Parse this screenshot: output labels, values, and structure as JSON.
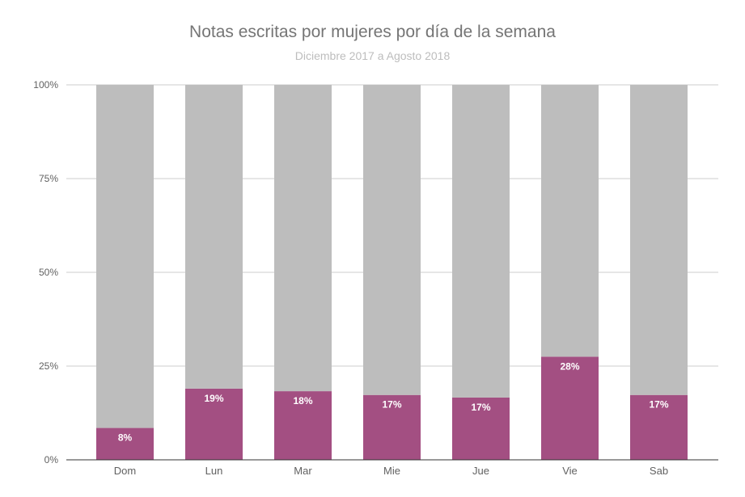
{
  "chart_data": {
    "type": "bar",
    "stacked": true,
    "title": "Notas escritas por mujeres por día de la semana",
    "subtitle": "Diciembre 2017 a Agosto 2018",
    "xlabel": "",
    "ylabel": "",
    "ylim": [
      0,
      100
    ],
    "yticks": [
      "0%",
      "25%",
      "50%",
      "75%",
      "100%"
    ],
    "ytick_values": [
      0,
      25,
      50,
      75,
      100
    ],
    "grid": true,
    "categories": [
      "Dom",
      "Lun",
      "Mar",
      "Mie",
      "Jue",
      "Vie",
      "Sab"
    ],
    "series": [
      {
        "values": [
          8.5,
          19,
          18.3,
          17.3,
          16.6,
          27.5,
          17.3
        ],
        "labels": [
          "8%",
          "19%",
          "18%",
          "17%",
          "17%",
          "28%",
          "17%"
        ],
        "color": "#a34f82"
      },
      {
        "values": [
          91.5,
          81,
          81.7,
          82.7,
          83.4,
          72.5,
          82.7
        ],
        "color": "#bdbdbd"
      }
    ],
    "label_color": "#ffffff",
    "axis_text_color": "#616161",
    "grid_color": "#cccccc"
  }
}
